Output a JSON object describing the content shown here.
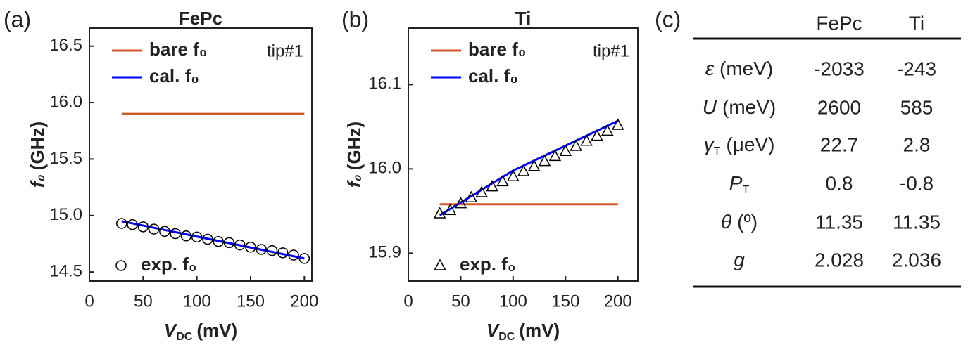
{
  "chart_data": [
    {
      "type": "line",
      "panel_label": "(a)",
      "title": "FePc",
      "annotation": "tip#1",
      "x_label": {
        "symbol": "V",
        "subscript": "DC",
        "unit": "(mV)"
      },
      "y_label": {
        "symbol": "f₀",
        "unit": "(GHz)"
      },
      "xlim": [
        0,
        207
      ],
      "xticks": [
        0,
        50,
        100,
        150,
        200
      ],
      "ylim": [
        14.42,
        16.66
      ],
      "yticks": [
        14.5,
        {
          "value": 15,
          "label": "15.0"
        },
        15.5,
        {
          "value": 16,
          "label": "16.0"
        },
        16.5
      ],
      "series": [
        {
          "name": "bare f₀",
          "color": "#d4572a",
          "style": "line",
          "x": [
            30,
            200
          ],
          "values": [
            15.9,
            15.9
          ]
        },
        {
          "name": "cal. f₀",
          "color": "#0000ff",
          "style": "line",
          "x": [
            30,
            200
          ],
          "values": [
            14.95,
            14.62
          ]
        },
        {
          "name": "exp. f₀",
          "color": "#000000",
          "style": "circle",
          "x": [
            30,
            40,
            50,
            60,
            70,
            80,
            90,
            100,
            110,
            120,
            130,
            140,
            150,
            160,
            170,
            180,
            190,
            200
          ],
          "values": [
            14.93,
            14.92,
            14.9,
            14.88,
            14.86,
            14.84,
            14.82,
            14.81,
            14.79,
            14.77,
            14.76,
            14.74,
            14.72,
            14.7,
            14.69,
            14.67,
            14.65,
            14.62
          ]
        }
      ]
    },
    {
      "type": "line",
      "panel_label": "(b)",
      "title": "Ti",
      "annotation": "tip#1",
      "x_label": {
        "symbol": "V",
        "subscript": "DC",
        "unit": "(mV)"
      },
      "y_label": {
        "symbol": "f₀",
        "unit": "(GHz)"
      },
      "xlim": [
        0,
        219
      ],
      "xticks": [
        0,
        50,
        100,
        150,
        200
      ],
      "ylim": [
        15.867,
        16.167
      ],
      "yticks": [
        15.9,
        {
          "value": 16,
          "label": "16.0"
        },
        16.1
      ],
      "series": [
        {
          "name": "bare f₀",
          "color": "#d4572a",
          "style": "line",
          "x": [
            30,
            200
          ],
          "values": [
            15.958,
            15.958
          ]
        },
        {
          "name": "cal. f₀",
          "color": "#0000ff",
          "style": "line",
          "x": [
            30,
            100,
            200
          ],
          "values": [
            15.945,
            15.998,
            16.057
          ]
        },
        {
          "name": "exp. f₀",
          "color": "#000000",
          "style": "triangle",
          "x": [
            30,
            40,
            50,
            60,
            70,
            80,
            90,
            100,
            110,
            120,
            130,
            140,
            150,
            160,
            170,
            180,
            190,
            200
          ],
          "values": [
            15.947,
            15.951,
            15.959,
            15.966,
            15.972,
            15.979,
            15.985,
            15.991,
            15.997,
            16.003,
            16.009,
            16.015,
            16.021,
            16.027,
            16.033,
            16.039,
            16.045,
            16.052
          ]
        }
      ]
    }
  ],
  "table": {
    "panel_label": "(c)",
    "columns": [
      "FePc",
      "Ti"
    ],
    "rows": [
      {
        "symbol": "ε",
        "unit": "(meV)",
        "values": [
          -2033,
          -243
        ]
      },
      {
        "symbol": "U",
        "unit": "(meV)",
        "values": [
          2600,
          585
        ]
      },
      {
        "symbol": "γ",
        "subscript": "T",
        "unit": "(μeV)",
        "values": [
          22.7,
          2.8
        ]
      },
      {
        "symbol": "P",
        "subscript": "T",
        "values": [
          0.8,
          -0.8
        ]
      },
      {
        "symbol": "θ",
        "unit": "(º)",
        "values": [
          11.35,
          11.35
        ]
      },
      {
        "symbol": "g",
        "values": [
          2.028,
          2.036
        ]
      }
    ]
  }
}
